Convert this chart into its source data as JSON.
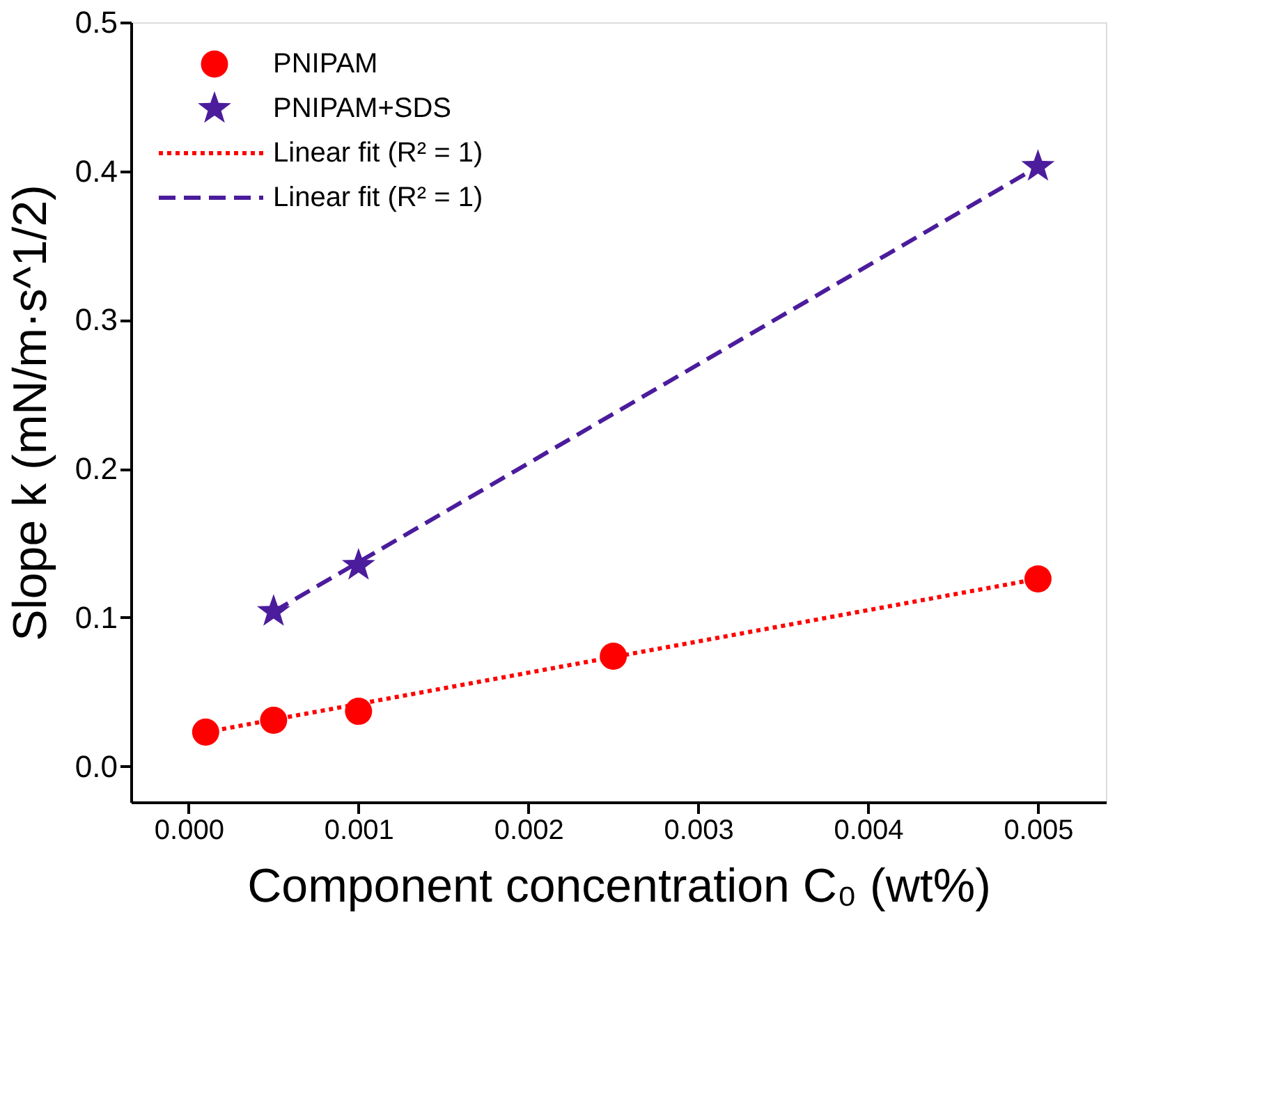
{
  "chart_data": {
    "type": "scatter",
    "xlabel": "Component concentration C₀ (wt%)",
    "ylabel": "Slope k (mN/m·s^1/2)",
    "xlim": [
      -0.00034,
      0.0054
    ],
    "ylim": [
      -0.024,
      0.5
    ],
    "xticks": [
      {
        "value": 0,
        "label": "0.000"
      },
      {
        "value": 0.001,
        "label": "0.001"
      },
      {
        "value": 0.002,
        "label": "0.002"
      },
      {
        "value": 0.003,
        "label": "0.003"
      },
      {
        "value": 0.004,
        "label": "0.004"
      },
      {
        "value": 0.005,
        "label": "0.005"
      }
    ],
    "yticks": [
      {
        "value": 0,
        "label": "0.0"
      },
      {
        "value": 0.1,
        "label": "0.1"
      },
      {
        "value": 0.2,
        "label": "0.2"
      },
      {
        "value": 0.3,
        "label": "0.3"
      },
      {
        "value": 0.4,
        "label": "0.4"
      },
      {
        "value": 0.5,
        "label": "0.5"
      }
    ],
    "grid": false,
    "legend": "top left",
    "series": [
      {
        "name": "PNIPAM",
        "marker": "circle",
        "color": "#ff0000",
        "x": [
          0.0001,
          0.0005,
          0.001,
          0.0025,
          0.005
        ],
        "values": [
          0.023,
          0.031,
          0.037,
          0.074,
          0.126
        ]
      },
      {
        "name": "PNIPAM+SDS",
        "marker": "star",
        "color": "#4b1c9c",
        "x": [
          0.0005,
          0.001,
          0.005
        ],
        "values": [
          0.104,
          0.135,
          0.403
        ]
      },
      {
        "name": "Linear fit (R² = 1)",
        "type": "line",
        "line_style": "dotted",
        "marker": "none",
        "color": "#ff0000",
        "x": [
          0.0001,
          0.005
        ],
        "values": [
          0.023,
          0.126
        ]
      },
      {
        "name": "Linear fit (R² = 1)",
        "type": "line",
        "line_style": "dashed",
        "marker": "none",
        "color": "#4b1c9c",
        "x": [
          0.0005,
          0.005
        ],
        "values": [
          0.104,
          0.403
        ]
      }
    ]
  }
}
